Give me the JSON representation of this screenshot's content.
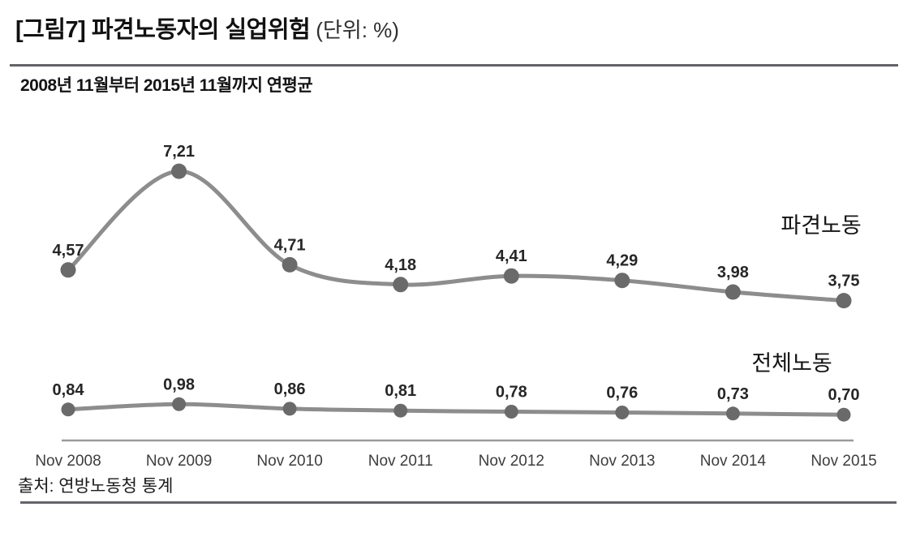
{
  "figure": {
    "title_main": "[그림7] 파견노동자의 실업위험",
    "title_unit": "(단위: %)",
    "subtitle": "2008년 11월부터 2015년 11월까지 연평균",
    "source": "출처: 연방노동청 통계"
  },
  "chart_data": {
    "type": "line",
    "title": "[그림7] 파견노동자의 실업위험",
    "subtitle": "2008년 11월부터 2015년 11월까지 연평균",
    "unit": "%",
    "x": [
      "Nov 2008",
      "Nov 2009",
      "Nov 2010",
      "Nov 2011",
      "Nov 2012",
      "Nov 2013",
      "Nov 2014",
      "Nov 2015"
    ],
    "series": [
      {
        "name": "파견노동",
        "values": [
          4.57,
          7.21,
          4.71,
          4.18,
          4.41,
          4.29,
          3.98,
          3.75
        ],
        "labels": [
          "4,57",
          "7,21",
          "4,71",
          "4,18",
          "4,41",
          "4,29",
          "3,98",
          "3,75"
        ]
      },
      {
        "name": "전체노동",
        "values": [
          0.84,
          0.98,
          0.86,
          0.81,
          0.78,
          0.76,
          0.73,
          0.7
        ],
        "labels": [
          "0,84",
          "0,98",
          "0,86",
          "0,81",
          "0,78",
          "0,76",
          "0,73",
          "0,70"
        ]
      }
    ],
    "ylim": [
      0,
      7.5
    ],
    "grid": false,
    "legend_position": "inline-right",
    "smoothing": true,
    "colors": {
      "line": "#8d8d8d",
      "point": "#6a6a6a",
      "value_label": "#262626",
      "axis_line": "#9a9a9a",
      "tick_label": "#3d3d3d",
      "series_label": "#141414",
      "rule": "#63636b"
    },
    "source": "출처: 연방노동청 통계"
  }
}
